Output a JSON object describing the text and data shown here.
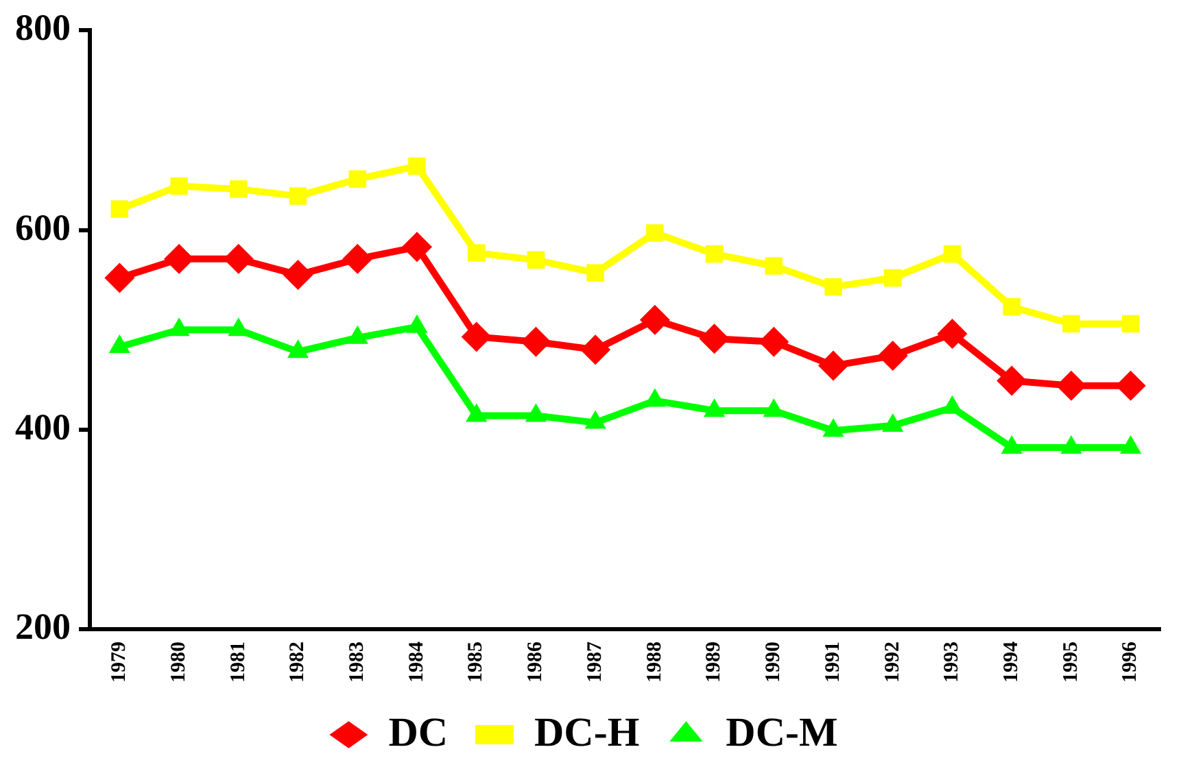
{
  "chart_data": {
    "type": "line",
    "categories": [
      "1979",
      "1980",
      "1981",
      "1982",
      "1983",
      "1984",
      "1985",
      "1986",
      "1987",
      "1988",
      "1989",
      "1990",
      "1991",
      "1992",
      "1993",
      "1994",
      "1995",
      "1996"
    ],
    "series": [
      {
        "name": "DC",
        "color": "#ff0000",
        "marker": "diamond",
        "values": [
          552,
          571,
          571,
          555,
          571,
          583,
          493,
          488,
          480,
          510,
          491,
          488,
          464,
          474,
          496,
          449,
          444,
          444
        ]
      },
      {
        "name": "DC-H",
        "color": "#ffff00",
        "marker": "square",
        "values": [
          621,
          644,
          641,
          634,
          651,
          664,
          577,
          570,
          557,
          597,
          576,
          564,
          543,
          552,
          576,
          523,
          506,
          506
        ]
      },
      {
        "name": "DC-M",
        "color": "#00ff00",
        "marker": "triangle",
        "values": [
          483,
          500,
          500,
          478,
          492,
          503,
          414,
          414,
          407,
          429,
          419,
          419,
          399,
          404,
          422,
          382,
          382,
          382
        ]
      }
    ],
    "ylim": [
      200,
      800
    ],
    "yticks": [
      200,
      400,
      600,
      800
    ],
    "grid": false,
    "legend": "bottom",
    "line_style": "solid"
  }
}
